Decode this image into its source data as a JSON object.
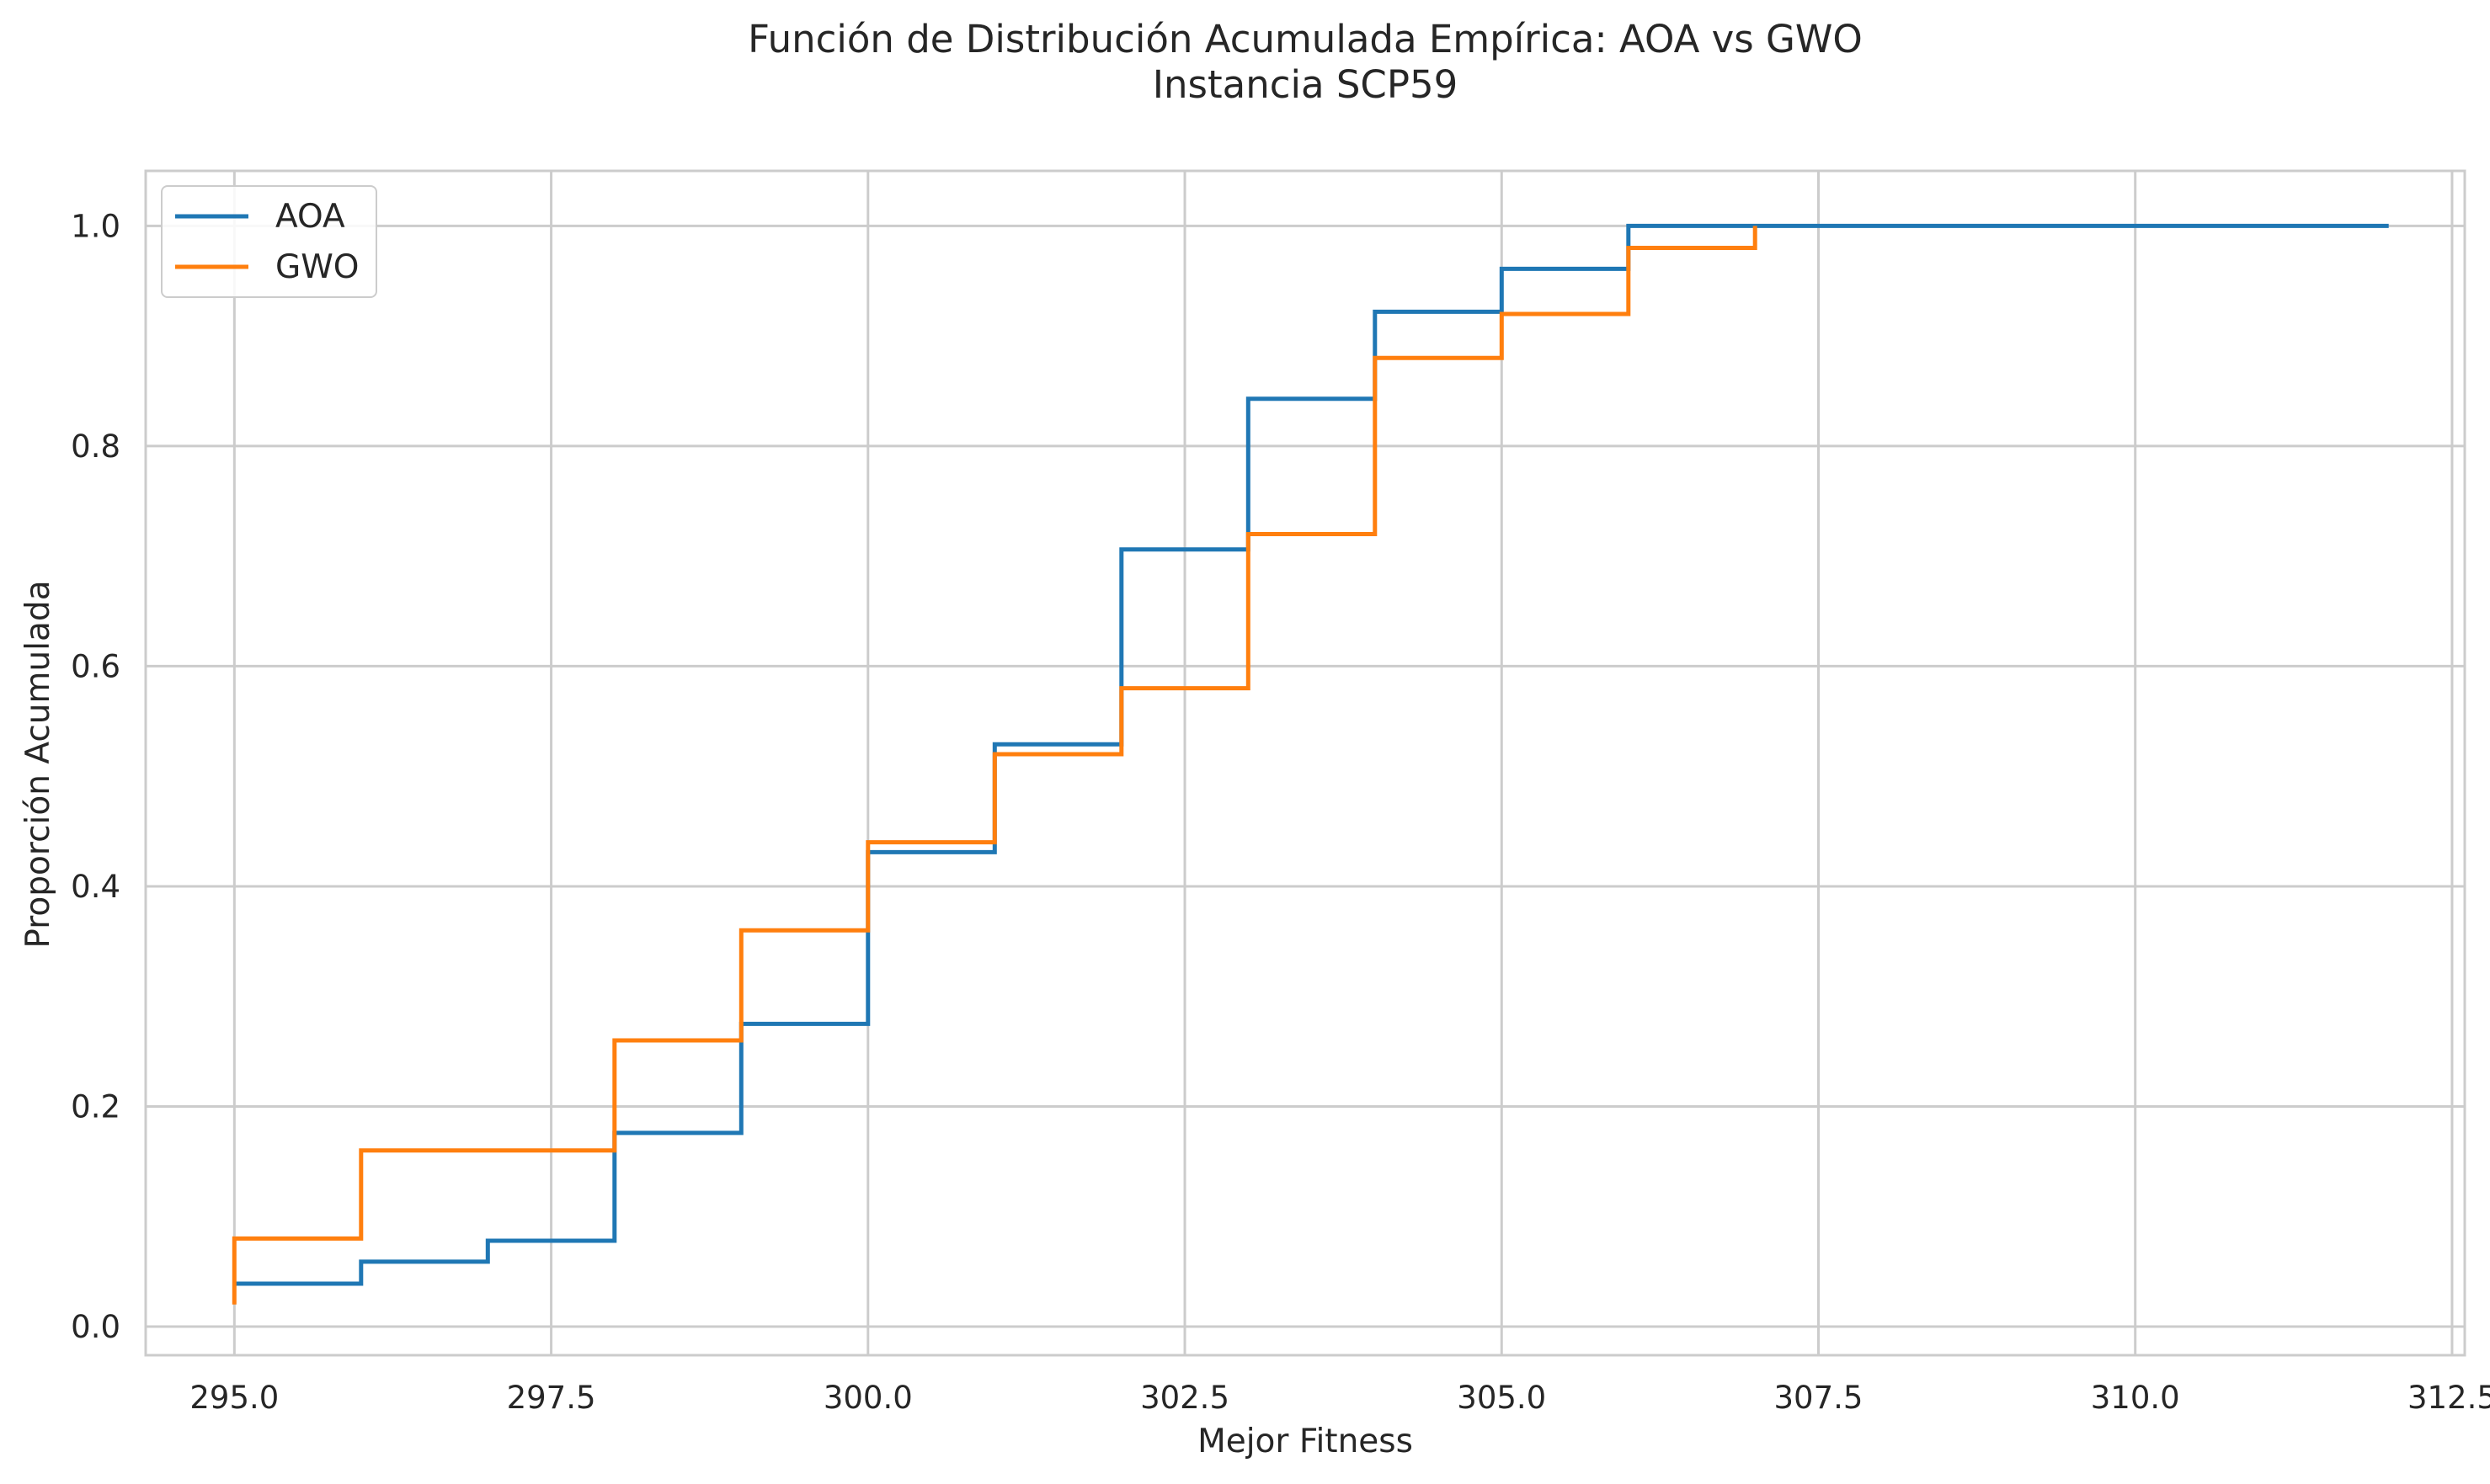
{
  "chart_data": {
    "type": "line",
    "subtype": "step-ecdf",
    "title": "Función de Distribución Acumulada Empírica: AOA vs GWO",
    "subtitle": "Instancia SCP59",
    "xlabel": "Mejor Fitness",
    "ylabel": "Proporción Acumulada",
    "xlim": [
      294.3,
      312.6
    ],
    "ylim": [
      -0.026,
      1.05
    ],
    "xticks": [
      295.0,
      297.5,
      300.0,
      302.5,
      305.0,
      307.5,
      310.0,
      312.5
    ],
    "xtick_labels": [
      "295.0",
      "297.5",
      "300.0",
      "302.5",
      "305.0",
      "307.5",
      "310.0",
      "312.5"
    ],
    "yticks": [
      0.0,
      0.2,
      0.4,
      0.6,
      0.8,
      1.0
    ],
    "ytick_labels": [
      "0.0",
      "0.2",
      "0.4",
      "0.6",
      "0.8",
      "1.0"
    ],
    "grid": true,
    "legend_position": "top-left",
    "series": [
      {
        "name": "AOA",
        "color": "#1f77b4",
        "x": [
          295,
          296,
          297,
          298,
          299,
          300,
          301,
          302,
          303,
          304,
          305,
          306,
          312
        ],
        "y": [
          0.039,
          0.059,
          0.078,
          0.176,
          0.275,
          0.431,
          0.529,
          0.706,
          0.843,
          0.922,
          0.961,
          1.0,
          1.0
        ]
      },
      {
        "name": "GWO",
        "color": "#ff7f0e",
        "x": [
          295,
          296,
          298,
          299,
          300,
          301,
          302,
          303,
          304,
          305,
          306,
          307
        ],
        "y": [
          0.08,
          0.16,
          0.26,
          0.36,
          0.44,
          0.52,
          0.58,
          0.72,
          0.88,
          0.92,
          0.98,
          1.0
        ]
      }
    ],
    "gwo_start_y": 0.02,
    "colors": {
      "grid": "#cccccc",
      "spine": "#cccccc",
      "text": "#262626"
    }
  }
}
